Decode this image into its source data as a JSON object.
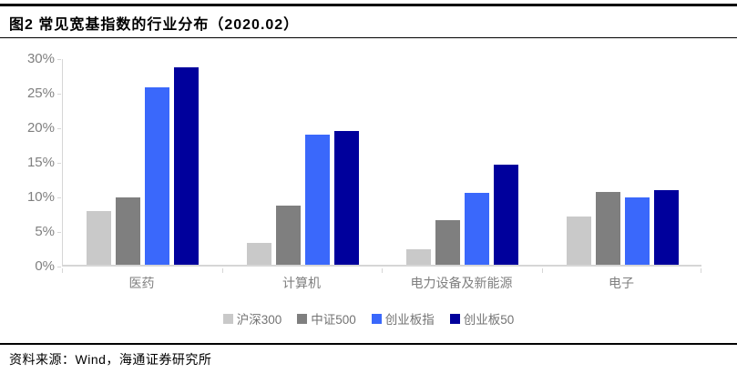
{
  "figure": {
    "title": "图2  常见宽基指数的行业分布（2020.02）",
    "source": "资料来源：Wind，海通证券研究所"
  },
  "chart_data": {
    "type": "bar",
    "title": "常见宽基指数的行业分布（2020.02）",
    "categories": [
      "医药",
      "计算机",
      "电力设备及新能源",
      "电子"
    ],
    "series": [
      {
        "name": "沪深300",
        "color": "#c9c9c9",
        "values": [
          7.8,
          3.1,
          2.2,
          7.0
        ]
      },
      {
        "name": "中证500",
        "color": "#7f7f7f",
        "values": [
          9.7,
          8.6,
          6.5,
          10.5
        ]
      },
      {
        "name": "创业板指",
        "color": "#3a68fb",
        "values": [
          25.7,
          18.8,
          10.4,
          9.8
        ]
      },
      {
        "name": "创业板50",
        "color": "#00009c",
        "values": [
          28.6,
          19.4,
          14.5,
          10.8
        ]
      }
    ],
    "xlabel": "",
    "ylabel": "",
    "ylim": [
      0,
      30
    ],
    "ytick_step": 5,
    "ytick_labels": [
      "0%",
      "5%",
      "10%",
      "15%",
      "20%",
      "25%",
      "30%"
    ],
    "grid": false,
    "legend_position": "bottom",
    "axis_color": "#d6d6d6",
    "tick_text_color": "#7f7f7f"
  }
}
